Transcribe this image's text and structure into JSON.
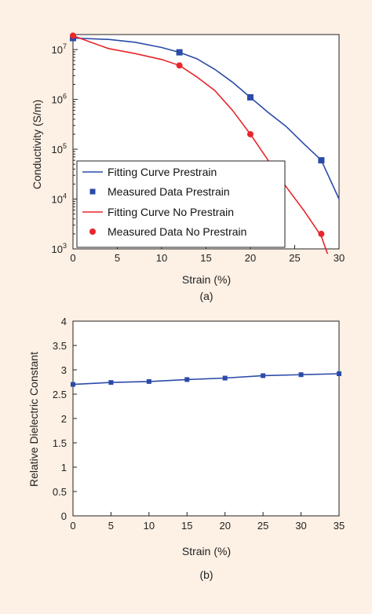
{
  "background_color": "#fdf0e4",
  "chart_data": [
    {
      "type": "line",
      "caption": "(a)",
      "xlabel": "Strain (%)",
      "ylabel": "Conductivity (S/m)",
      "xlim": [
        0,
        30
      ],
      "ylim": [
        1000,
        20000000
      ],
      "yscale": "log",
      "x_ticks": [
        "0",
        "5",
        "10",
        "15",
        "20",
        "25",
        "30"
      ],
      "y_ticks": [
        {
          "base": "10",
          "exp": "3"
        },
        {
          "base": "10",
          "exp": "4"
        },
        {
          "base": "10",
          "exp": "5"
        },
        {
          "base": "10",
          "exp": "6"
        },
        {
          "base": "10",
          "exp": "7"
        }
      ],
      "legend_position": "lower-left",
      "series": [
        {
          "name": "Fitting Curve Prestrain",
          "kind": "line",
          "color": "#2b4ba8",
          "x": [
            0,
            4,
            7,
            10,
            12,
            14,
            16,
            18,
            20,
            22,
            24,
            26,
            28,
            30
          ],
          "y": [
            17000000,
            16000000,
            14000000,
            11000000,
            8800000,
            6500000,
            4000000,
            2200000,
            1100000,
            550000,
            290000,
            130000,
            60000,
            10000
          ]
        },
        {
          "name": "Measured Data Prestrain",
          "kind": "marker-square",
          "color": "#2b4ba8",
          "x": [
            0,
            12,
            20,
            28
          ],
          "y": [
            17000000,
            8800000,
            1100000,
            60000
          ]
        },
        {
          "name": "Fitting Curve No Prestrain",
          "kind": "line",
          "color": "#e8262b",
          "x": [
            0,
            2,
            4,
            7,
            10,
            12,
            14,
            16,
            18,
            20,
            22,
            24,
            26,
            28,
            28.7
          ],
          "y": [
            19000000,
            14000000,
            10500000,
            8300000,
            6300000,
            4800000,
            2800000,
            1500000,
            600000,
            200000,
            60000,
            18000,
            6000,
            1800,
            800
          ]
        },
        {
          "name": "Measured Data No Prestrain",
          "kind": "marker-circle",
          "color": "#e8262b",
          "x": [
            0,
            12,
            20,
            28
          ],
          "y": [
            19000000,
            4800000,
            200000,
            2000
          ]
        }
      ]
    },
    {
      "type": "line",
      "caption": "(b)",
      "xlabel": "Strain (%)",
      "ylabel": "Relative Dielectric Constant",
      "xlim": [
        0,
        35
      ],
      "ylim": [
        0,
        4
      ],
      "x_ticks": [
        "0",
        "5",
        "10",
        "15",
        "20",
        "25",
        "30",
        "35"
      ],
      "y_ticks": [
        "0",
        "0.5",
        "1",
        "1.5",
        "2",
        "2.5",
        "3",
        "3.5",
        "4"
      ],
      "series": [
        {
          "color": "#2b4ba8",
          "x": [
            0,
            5,
            10,
            15,
            20,
            25,
            30,
            35
          ],
          "y": [
            2.7,
            2.74,
            2.76,
            2.8,
            2.83,
            2.88,
            2.9,
            2.92
          ]
        }
      ]
    }
  ]
}
